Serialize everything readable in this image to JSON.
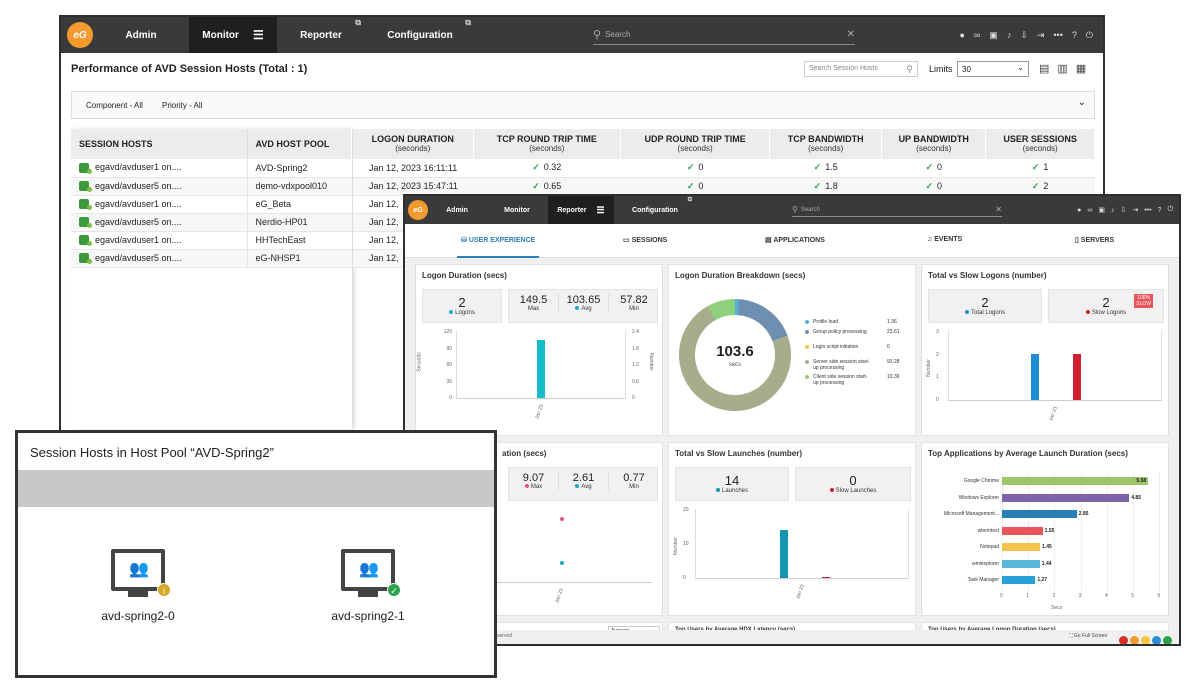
{
  "win1": {
    "nav": [
      "Admin",
      "Monitor",
      "Reporter",
      "Configuration"
    ],
    "search_placeholder": "Search",
    "title": "Performance of AVD Session Hosts (Total : 1)",
    "search_hosts_placeholder": "Search Session Hosts",
    "limits_label": "Limits",
    "limits_value": "30",
    "filter_component": "Component - All",
    "filter_priority": "Priority - All",
    "left_headers": [
      "SESSION HOSTS",
      "AVD HOST POOL"
    ],
    "right_headers": [
      {
        "t": "LOGON DURATION",
        "s": "(seconds)"
      },
      {
        "t": "TCP ROUND TRIP TIME",
        "s": "(seconds)"
      },
      {
        "t": "UDP ROUND TRIP TIME",
        "s": "(seconds)"
      },
      {
        "t": "TCP BANDWIDTH",
        "s": "(seconds)"
      },
      {
        "t": "UP BANDWIDTH",
        "s": "(seconds)"
      },
      {
        "t": "USER SESSIONS",
        "s": "(seconds)"
      }
    ],
    "rows": [
      {
        "host": "egavd/avduser1 on....",
        "pool": "AVD-Spring2",
        "logon": "Jan 12, 2023 16:11:11",
        "tcp": "0.32",
        "udp": "0",
        "bw": "1.5",
        "up": "0",
        "sess": "1"
      },
      {
        "host": "egavd/avduser5 on....",
        "pool": "demo-vdxpool010",
        "logon": "Jan 12, 2023 15:47:11",
        "tcp": "0.65",
        "udp": "0",
        "bw": "1.8",
        "up": "0",
        "sess": "2"
      },
      {
        "host": "egavd/avduser1 on....",
        "pool": "eG_Beta",
        "logon": "Jan 12,"
      },
      {
        "host": "egavd/avduser5 on....",
        "pool": "Nerdio-HP01",
        "logon": "Jan 12,"
      },
      {
        "host": "egavd/avduser1 on....",
        "pool": "HHTechEast",
        "logon": "Jan 12,"
      },
      {
        "host": "egavd/avduser5 on....",
        "pool": "eG-NHSP1",
        "logon": "Jan 12,"
      }
    ]
  },
  "win2": {
    "nav": [
      "Admin",
      "Monitor",
      "Reporter",
      "Configuration"
    ],
    "search_placeholder": "Search",
    "tabs": [
      "USER EXPERIENCE",
      "SESSIONS",
      "APPLICATIONS",
      "EVENTS",
      "SERVERS"
    ],
    "logon": {
      "title": "Logon Duration (secs)",
      "count": "2",
      "count_label": "Logons",
      "max": "149.5",
      "avg": "103.65",
      "min": "57.82",
      "max_label": "Max",
      "avg_label": "Avg",
      "min_label": "Min",
      "y_left": [
        "120",
        "90",
        "60",
        "30",
        "0"
      ],
      "y_right": [
        "2.4",
        "1.8",
        "1.2",
        "0.6",
        "0"
      ],
      "ylabel_left": "Seconds",
      "ylabel_right": "Number",
      "xtick": "Jan 23"
    },
    "breakdown": {
      "title": "Logon Duration Breakdown (secs)",
      "center_value": "103.6",
      "center_unit": "secs",
      "items": [
        {
          "label": "Profile load",
          "value": "1.36",
          "color": "#4fb3d9"
        },
        {
          "label": "Group policy processing",
          "value": "23.61",
          "color": "#6f8fb0"
        },
        {
          "label": "Login script initiation",
          "value": "0",
          "color": "#f4c542"
        },
        {
          "label": "Server side session start-up processing",
          "value": "93.28",
          "color": "#a6ad8a"
        },
        {
          "label": "Client side session start-up processing",
          "value": "10.36",
          "color": "#8ed07b"
        }
      ]
    },
    "totslow": {
      "title": "Total vs Slow Logons (number)",
      "total": "2",
      "total_label": "Total Logons",
      "slow": "2",
      "slow_label": "Slow Logons",
      "badge": "100%",
      "badge_sub": "SLOW",
      "y": [
        "3",
        "2",
        "1",
        "0"
      ],
      "ylabel": "Number",
      "xtick": "Jan 23"
    },
    "launch": {
      "title_fragment": "ation (secs)",
      "max": "9.07",
      "avg": "2.61",
      "min": "0.77",
      "max_label": "Max",
      "avg_label": "Avg",
      "min_label": "Min",
      "xtick": "Jan 23"
    },
    "launches": {
      "title": "Total vs Slow Launches (number)",
      "total": "14",
      "total_label": "Launches",
      "slow": "0",
      "slow_label": "Slow Launches",
      "y": [
        "20",
        "10",
        "0"
      ],
      "ylabel": "Number",
      "xtick": "Jan 23"
    },
    "topapps": {
      "title": "Top Applications by Average Launch Duration (secs)",
      "xlabel": "Secs",
      "xticks": [
        "0",
        "1",
        "2",
        "3",
        "4",
        "5",
        "6"
      ]
    },
    "bottom_titles": [
      "Top Users by Average HDX Latency (secs)",
      "Top Users by Average Logon Duration (secs)"
    ],
    "dropdown": "Average",
    "footer_left": "served",
    "footer_full": "Go Full Screen"
  },
  "chart_data": [
    {
      "type": "bar",
      "title": "Top Applications by Average Launch Duration (secs)",
      "xlabel": "Secs",
      "xlim": [
        0,
        6
      ],
      "categories": [
        "Google Chrome",
        "Windows Explorer",
        "Microsoft Management...",
        "wbemtest",
        "Notepad",
        "wmiexplorer",
        "Task Manager"
      ],
      "values": [
        5.58,
        4.85,
        2.85,
        1.55,
        1.45,
        1.44,
        1.27
      ],
      "colors": [
        "#9dc66b",
        "#7e63a6",
        "#2a7fb5",
        "#e8555a",
        "#f3c64b",
        "#56b7d6",
        "#2aa0d8"
      ]
    },
    {
      "type": "bar",
      "title": "Total vs Slow Logons (number)",
      "ylabel": "Number",
      "ylim": [
        0,
        3
      ],
      "categories": [
        "Jan 23"
      ],
      "series": [
        {
          "name": "Total Logons",
          "values": [
            2
          ],
          "color": "#1d8ed1"
        },
        {
          "name": "Slow Logons",
          "values": [
            2
          ],
          "color": "#d0202e"
        }
      ]
    },
    {
      "type": "bar",
      "title": "Total vs Slow Launches (number)",
      "ylabel": "Number",
      "ylim": [
        0,
        20
      ],
      "categories": [
        "Jan 23"
      ],
      "series": [
        {
          "name": "Launches",
          "values": [
            14
          ],
          "color": "#1495b0"
        },
        {
          "name": "Slow Launches",
          "values": [
            0
          ],
          "color": "#d0202e"
        }
      ]
    }
  ],
  "win3": {
    "title": "Session Hosts in Host Pool “AVD-Spring2”",
    "hosts": [
      {
        "name": "avd-spring2-0",
        "status": "info"
      },
      {
        "name": "avd-spring2-1",
        "status": "ok"
      }
    ]
  }
}
